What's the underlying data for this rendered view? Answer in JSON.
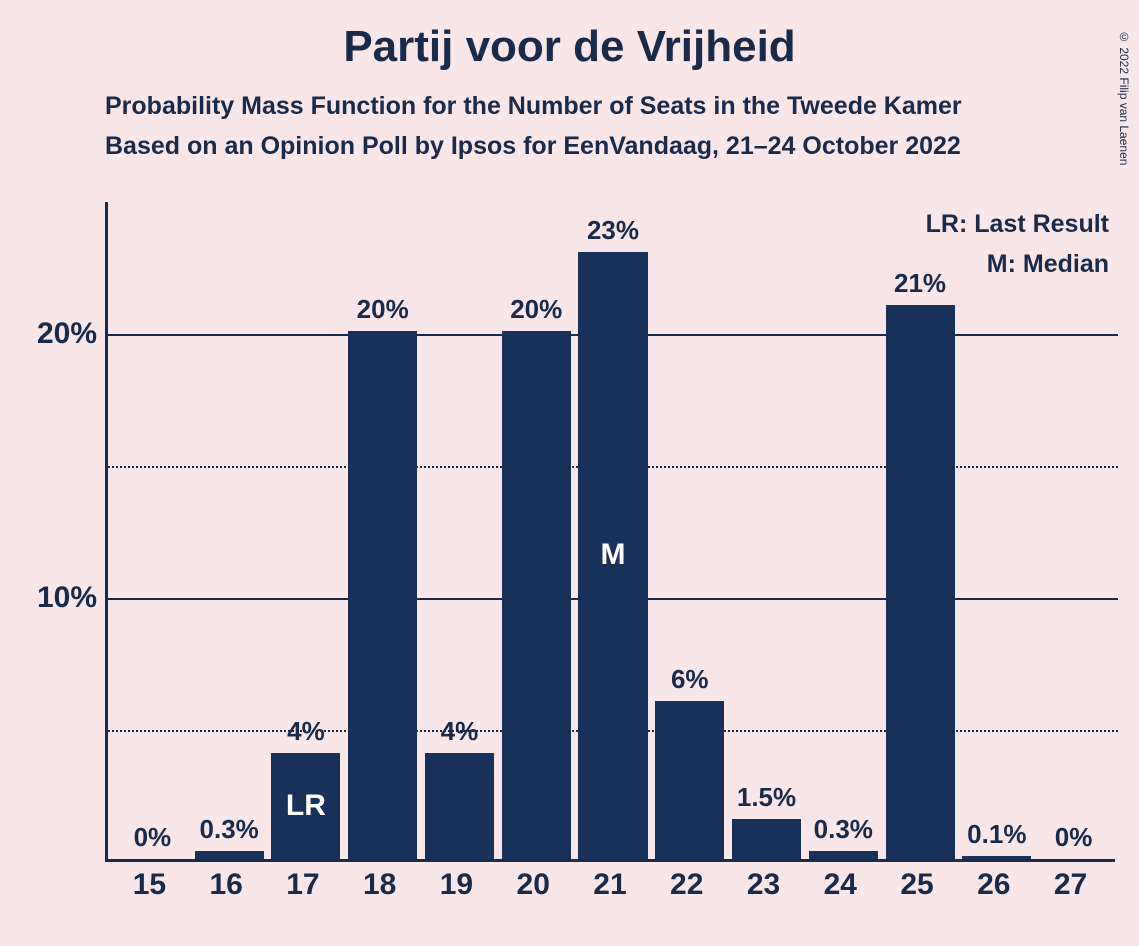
{
  "copyright": "© 2022 Filip van Laenen",
  "title": "Partij voor de Vrijheid",
  "subtitle_line1": "Probability Mass Function for the Number of Seats in the Tweede Kamer",
  "subtitle_line2": "Based on an Opinion Poll by Ipsos for EenVandaag, 21–24 October 2022",
  "legend_line1": "LR: Last Result",
  "legend_line2": "M: Median",
  "chart": {
    "type": "bar",
    "background_color": "#f8e6e8",
    "bar_color": "#18315b",
    "text_color": "#1a2a4a",
    "inner_label_color": "#ffffff",
    "ymax_pct": 25,
    "gridlines": [
      {
        "pct": 20,
        "style": "solid",
        "label": "20%"
      },
      {
        "pct": 15,
        "style": "dotted",
        "label": ""
      },
      {
        "pct": 10,
        "style": "solid",
        "label": "10%"
      },
      {
        "pct": 5,
        "style": "dotted",
        "label": ""
      }
    ],
    "bars": [
      {
        "x": "15",
        "value_pct": 0,
        "label": "0%",
        "inner": ""
      },
      {
        "x": "16",
        "value_pct": 0.3,
        "label": "0.3%",
        "inner": ""
      },
      {
        "x": "17",
        "value_pct": 4,
        "label": "4%",
        "inner": "LR"
      },
      {
        "x": "18",
        "value_pct": 20,
        "label": "20%",
        "inner": ""
      },
      {
        "x": "19",
        "value_pct": 4,
        "label": "4%",
        "inner": ""
      },
      {
        "x": "20",
        "value_pct": 20,
        "label": "20%",
        "inner": ""
      },
      {
        "x": "21",
        "value_pct": 23,
        "label": "23%",
        "inner": "M"
      },
      {
        "x": "22",
        "value_pct": 6,
        "label": "6%",
        "inner": ""
      },
      {
        "x": "23",
        "value_pct": 1.5,
        "label": "1.5%",
        "inner": ""
      },
      {
        "x": "24",
        "value_pct": 0.3,
        "label": "0.3%",
        "inner": ""
      },
      {
        "x": "25",
        "value_pct": 21,
        "label": "21%",
        "inner": ""
      },
      {
        "x": "26",
        "value_pct": 0.1,
        "label": "0.1%",
        "inner": ""
      },
      {
        "x": "27",
        "value_pct": 0,
        "label": "0%",
        "inner": ""
      }
    ]
  }
}
